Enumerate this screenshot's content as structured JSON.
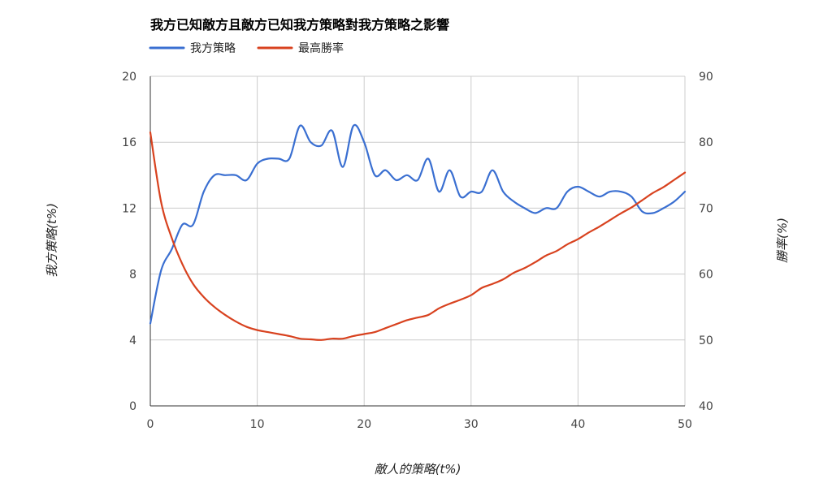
{
  "chart_data": {
    "type": "line",
    "title": "我方已知敵方且敵方已知我方策略對我方策略之影響",
    "xlabel": "敵人的策略(t%)",
    "ylabel_left": "我方策略(t%)",
    "ylabel_right": "勝率(%)",
    "xlim": [
      0,
      50
    ],
    "ylim_left": [
      0,
      20
    ],
    "ylim_right": [
      40,
      90
    ],
    "x_ticks": [
      0,
      10,
      20,
      30,
      40,
      50
    ],
    "y_left_ticks": [
      0,
      4,
      8,
      12,
      16,
      20
    ],
    "y_right_ticks": [
      40,
      50,
      60,
      70,
      80,
      90
    ],
    "grid": true,
    "legend_position": "top-left",
    "series": [
      {
        "name": "我方策略",
        "axis": "left",
        "color": "#3a6fd1",
        "x": [
          0,
          1,
          2,
          3,
          4,
          5,
          6,
          7,
          8,
          9,
          10,
          11,
          12,
          13,
          14,
          15,
          16,
          17,
          18,
          19,
          20,
          21,
          22,
          23,
          24,
          25,
          26,
          27,
          28,
          29,
          30,
          31,
          32,
          33,
          34,
          35,
          36,
          37,
          38,
          39,
          40,
          41,
          42,
          43,
          44,
          45,
          46,
          47,
          48,
          49,
          50
        ],
        "y": [
          5,
          8.2,
          9.5,
          11,
          11,
          13,
          14,
          14,
          14,
          13.7,
          14.7,
          15,
          15,
          15,
          17,
          16,
          15.8,
          16.7,
          14.5,
          17,
          16,
          14,
          14.3,
          13.7,
          14,
          13.7,
          15,
          13,
          14.3,
          12.7,
          13,
          13,
          14.3,
          13,
          12.4,
          12,
          11.7,
          12,
          12,
          13,
          13.3,
          13,
          12.7,
          13,
          13,
          12.7,
          11.8,
          11.7,
          12,
          12.4,
          13
        ]
      },
      {
        "name": "最高勝率",
        "axis": "right",
        "color": "#d8421f",
        "x": [
          0,
          1,
          2,
          3,
          4,
          5,
          6,
          7,
          8,
          9,
          10,
          11,
          12,
          13,
          14,
          15,
          16,
          17,
          18,
          19,
          20,
          21,
          22,
          23,
          24,
          25,
          26,
          27,
          28,
          29,
          30,
          31,
          32,
          33,
          34,
          35,
          36,
          37,
          38,
          39,
          40,
          41,
          42,
          43,
          44,
          45,
          46,
          47,
          48,
          49,
          50
        ],
        "y": [
          81.5,
          71,
          65.5,
          61.5,
          58.5,
          56.5,
          55,
          53.8,
          52.8,
          52,
          51.5,
          51.2,
          50.9,
          50.6,
          50.2,
          50.1,
          50,
          50.2,
          50.2,
          50.6,
          50.9,
          51.2,
          51.8,
          52.4,
          53,
          53.4,
          53.8,
          54.8,
          55.5,
          56.1,
          56.8,
          57.9,
          58.5,
          59.2,
          60.2,
          60.9,
          61.8,
          62.8,
          63.5,
          64.5,
          65.3,
          66.3,
          67.2,
          68.2,
          69.2,
          70.1,
          71.2,
          72.3,
          73.2,
          74.3,
          75.4
        ]
      }
    ]
  }
}
